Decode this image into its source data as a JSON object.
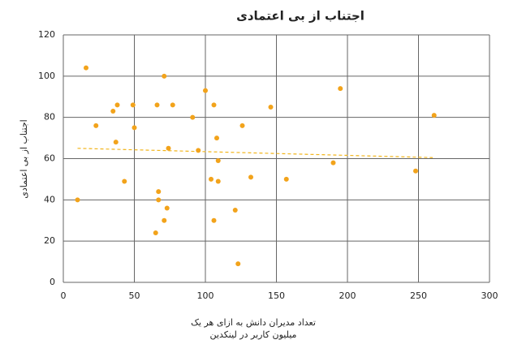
{
  "chart_data": {
    "type": "scatter",
    "title": "اجتناب از بی اعتمادی",
    "ylabel": "اجتناب از بی اعتمادی",
    "xlabel": [
      "تعداد مدیران دانش به ازای هر یک",
      "میلیون کاربر در لینکدین"
    ],
    "color": "#f2a31b",
    "trend_color": "#f2b51b",
    "x": [
      16,
      10,
      23,
      35,
      38,
      37,
      43,
      49,
      50,
      66,
      71,
      77,
      74,
      67,
      67,
      73,
      71,
      65,
      91,
      100,
      106,
      95,
      108,
      109,
      104,
      109,
      106,
      126,
      121,
      123,
      132,
      146,
      157,
      195,
      190,
      248,
      261
    ],
    "values": [
      104,
      40,
      76,
      83,
      86,
      68,
      49,
      86,
      75,
      86,
      100,
      86,
      65,
      44,
      40,
      36,
      30,
      24,
      80,
      93,
      86,
      64,
      70,
      59,
      50,
      49,
      30,
      76,
      35,
      9,
      51,
      85,
      50,
      94,
      58,
      54,
      81
    ],
    "trendline": {
      "x": [
        10,
        260
      ],
      "y": [
        65,
        60.5
      ]
    },
    "xlim": [
      0,
      300
    ],
    "ylim": [
      0,
      120
    ],
    "xticks": [
      0,
      50,
      100,
      150,
      200,
      250,
      300
    ],
    "yticks": [
      0,
      20,
      40,
      60,
      80,
      100,
      120
    ],
    "grid": true
  }
}
